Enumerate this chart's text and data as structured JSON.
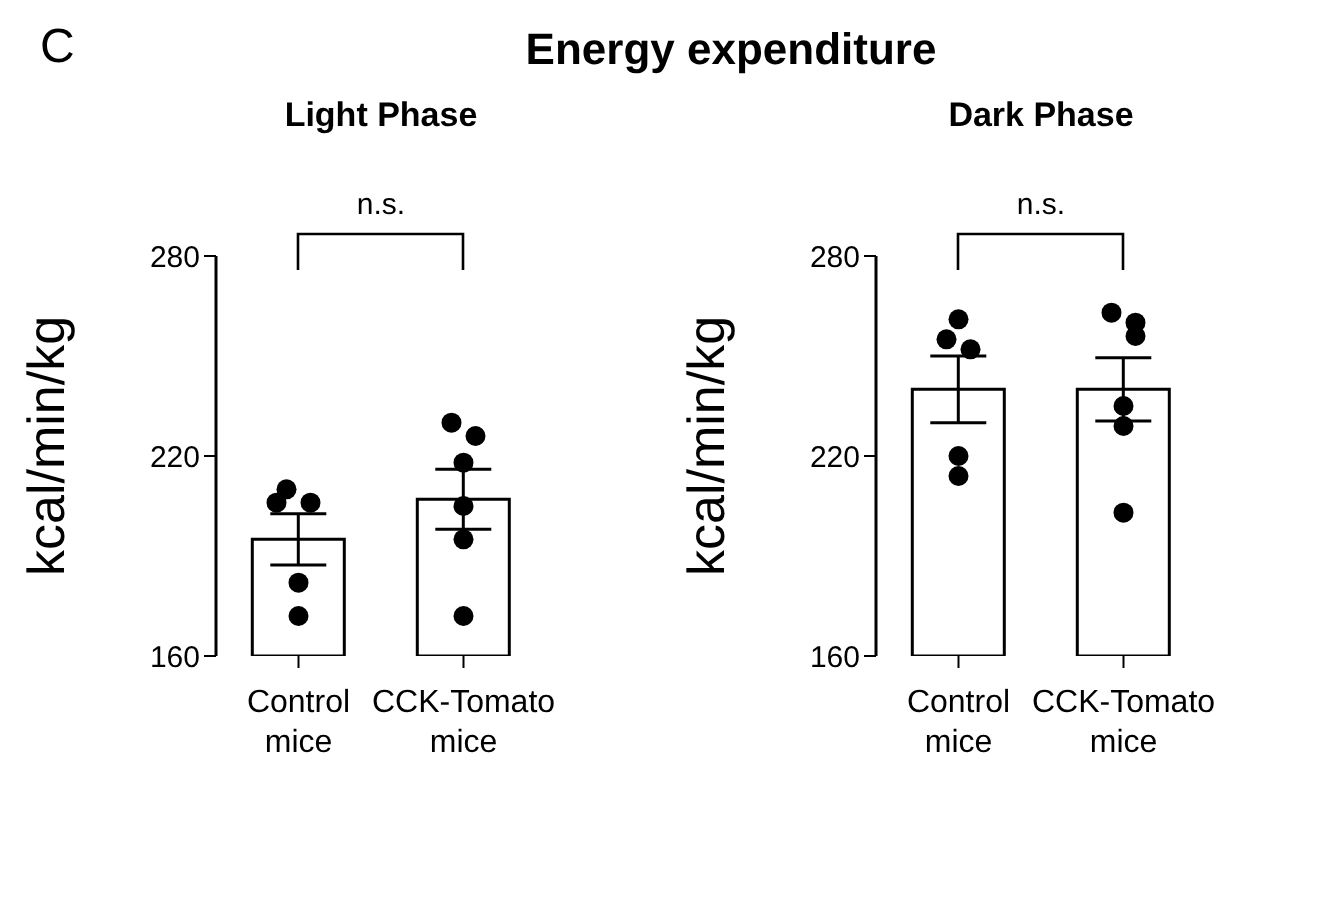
{
  "chart_data": [
    {
      "type": "bar",
      "title": "Light Phase",
      "ylabel": "kcal/min/kg",
      "categories": [
        "Control mice",
        "CCK-Tomato mice"
      ],
      "ylim": [
        160,
        280
      ],
      "yticks": [
        160,
        220,
        280
      ],
      "grid": false,
      "legend": false,
      "annotations": [
        "C",
        "Energy expenditure",
        "n.s."
      ],
      "series": [
        {
          "color": "#ffffff",
          "values": [
            195,
            207
          ],
          "errors": [
            7.7,
            9
          ]
        },
        {
          "type": "scatter",
          "color": "#000000",
          "x": [
            "Control mice",
            "Control mice",
            "Control mice",
            "Control mice",
            "Control mice",
            "CCK-Tomato mice",
            "CCK-Tomato mice",
            "CCK-Tomato mice",
            "CCK-Tomato mice",
            "CCK-Tomato mice",
            "CCK-Tomato mice"
          ],
          "values": [
            210,
            206,
            206,
            182,
            172,
            230,
            226,
            218,
            205,
            195,
            172
          ]
        }
      ]
    },
    {
      "type": "bar",
      "title": "Dark Phase",
      "ylabel": "kcal/min/kg",
      "categories": [
        "Control mice",
        "CCK-Tomato mice"
      ],
      "ylim": [
        160,
        280
      ],
      "yticks": [
        160,
        220,
        280
      ],
      "grid": false,
      "legend": false,
      "annotations": [
        "n.s."
      ],
      "series": [
        {
          "color": "#ffffff",
          "values": [
            240,
            240
          ],
          "errors": [
            10,
            9.5
          ]
        },
        {
          "type": "scatter",
          "color": "#000000",
          "x": [
            "Control mice",
            "Control mice",
            "Control mice",
            "Control mice",
            "Control mice",
            "CCK-Tomato mice",
            "CCK-Tomato mice",
            "CCK-Tomato mice",
            "CCK-Tomato mice",
            "CCK-Tomato mice",
            "CCK-Tomato mice"
          ],
          "values": [
            261,
            255,
            252,
            220,
            214,
            263,
            260,
            256,
            235,
            229,
            203
          ]
        }
      ]
    }
  ]
}
